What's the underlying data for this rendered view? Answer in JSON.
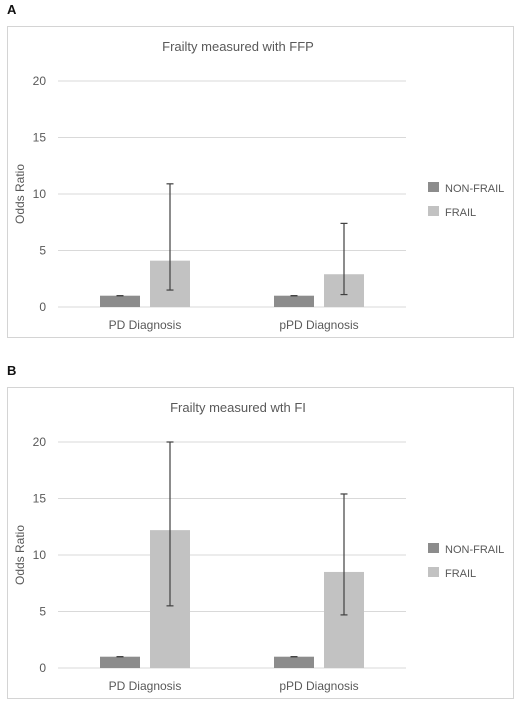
{
  "panels": [
    {
      "letter": "A",
      "chart_data": {
        "type": "bar",
        "title": "Frailty measured with FFP",
        "xlabel": "",
        "ylabel": "Odds Ratio",
        "ylim": [
          0,
          20
        ],
        "yticks": [
          0,
          5,
          10,
          15,
          20
        ],
        "categories": [
          "PD Diagnosis",
          "pPD Diagnosis"
        ],
        "series": [
          {
            "name": "NON-FRAIL",
            "color": "#8c8c8c",
            "values": [
              1,
              1
            ],
            "err_low": [
              1,
              1
            ],
            "err_high": [
              1,
              1
            ]
          },
          {
            "name": "FRAIL",
            "color": "#c2c2c2",
            "values": [
              4.1,
              2.9
            ],
            "err_low": [
              1.5,
              1.1
            ],
            "err_high": [
              10.9,
              7.4
            ]
          }
        ],
        "grid": true,
        "legend": "right"
      }
    },
    {
      "letter": "B",
      "chart_data": {
        "type": "bar",
        "title": "Frailty measured wth FI",
        "xlabel": "",
        "ylabel": "Odds Ratio",
        "ylim": [
          0,
          20
        ],
        "yticks": [
          0,
          5,
          10,
          15,
          20
        ],
        "categories": [
          "PD Diagnosis",
          "pPD Diagnosis"
        ],
        "series": [
          {
            "name": "NON-FRAIL",
            "color": "#8c8c8c",
            "values": [
              1,
              1
            ],
            "err_low": [
              1,
              1
            ],
            "err_high": [
              1,
              1
            ]
          },
          {
            "name": "FRAIL",
            "color": "#c2c2c2",
            "values": [
              12.2,
              8.5
            ],
            "err_low": [
              5.5,
              4.7
            ],
            "err_high": [
              20,
              15.4
            ]
          }
        ],
        "grid": true,
        "legend": "right"
      }
    }
  ]
}
